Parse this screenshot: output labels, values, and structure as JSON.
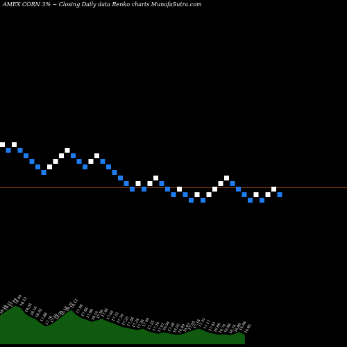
{
  "chart_data": {
    "type": "renko",
    "title": "AMEX CORN 3% ~ Closing Daily data Renko charts MunafaSutra.com",
    "reference_line": {
      "color": "#8b4513"
    },
    "colors": {
      "up": "#ffffff",
      "down": "#1e7bf0",
      "volume": "#0f5a0f"
    },
    "bricks": [
      {
        "dir": "up",
        "level": 0
      },
      {
        "dir": "down",
        "level": 1
      },
      {
        "dir": "up",
        "level": 0
      },
      {
        "dir": "down",
        "level": 1
      },
      {
        "dir": "down",
        "level": 2
      },
      {
        "dir": "down",
        "level": 3
      },
      {
        "dir": "down",
        "level": 4
      },
      {
        "dir": "down",
        "level": 5
      },
      {
        "dir": "up",
        "level": 4
      },
      {
        "dir": "up",
        "level": 3
      },
      {
        "dir": "up",
        "level": 2
      },
      {
        "dir": "up",
        "level": 1
      },
      {
        "dir": "down",
        "level": 2
      },
      {
        "dir": "down",
        "level": 3
      },
      {
        "dir": "down",
        "level": 4
      },
      {
        "dir": "up",
        "level": 3
      },
      {
        "dir": "up",
        "level": 2
      },
      {
        "dir": "down",
        "level": 3
      },
      {
        "dir": "down",
        "level": 4
      },
      {
        "dir": "down",
        "level": 5
      },
      {
        "dir": "down",
        "level": 6
      },
      {
        "dir": "down",
        "level": 7
      },
      {
        "dir": "down",
        "level": 8
      },
      {
        "dir": "up",
        "level": 7
      },
      {
        "dir": "down",
        "level": 8
      },
      {
        "dir": "up",
        "level": 7
      },
      {
        "dir": "up",
        "level": 6
      },
      {
        "dir": "down",
        "level": 7
      },
      {
        "dir": "down",
        "level": 8
      },
      {
        "dir": "down",
        "level": 9
      },
      {
        "dir": "up",
        "level": 8
      },
      {
        "dir": "down",
        "level": 9
      },
      {
        "dir": "down",
        "level": 10
      },
      {
        "dir": "up",
        "level": 9
      },
      {
        "dir": "down",
        "level": 10
      },
      {
        "dir": "up",
        "level": 9
      },
      {
        "dir": "up",
        "level": 8
      },
      {
        "dir": "up",
        "level": 7
      },
      {
        "dir": "up",
        "level": 6
      },
      {
        "dir": "down",
        "level": 7
      },
      {
        "dir": "down",
        "level": 8
      },
      {
        "dir": "down",
        "level": 9
      },
      {
        "dir": "down",
        "level": 10
      },
      {
        "dir": "up",
        "level": 9
      },
      {
        "dir": "down",
        "level": 10
      },
      {
        "dir": "up",
        "level": 9
      },
      {
        "dir": "up",
        "level": 8
      },
      {
        "dir": "down",
        "level": 9
      }
    ],
    "volume": [
      {
        "label": "18.24",
        "value": 0.55
      },
      {
        "label": "18.11",
        "value": 0.62
      },
      {
        "label": "17.94",
        "value": 0.68
      },
      {
        "label": "18.09",
        "value": 0.74
      },
      {
        "label": "18.22",
        "value": 0.7
      },
      {
        "label": "18.05",
        "value": 0.58
      },
      {
        "label": "18.16",
        "value": 0.52
      },
      {
        "label": "18.02",
        "value": 0.48
      },
      {
        "label": "17.88",
        "value": 0.4
      },
      {
        "label": "17.76",
        "value": 0.34
      },
      {
        "label": "17.90",
        "value": 0.38
      },
      {
        "label": "18.04",
        "value": 0.44
      },
      {
        "label": "18.18",
        "value": 0.52
      },
      {
        "label": "18.30",
        "value": 0.6
      },
      {
        "label": "18.12",
        "value": 0.66
      },
      {
        "label": "17.98",
        "value": 0.56
      },
      {
        "label": "17.84",
        "value": 0.5
      },
      {
        "label": "17.98",
        "value": 0.47
      },
      {
        "label": "18.10",
        "value": 0.43
      },
      {
        "label": "17.96",
        "value": 0.46
      },
      {
        "label": "17.81",
        "value": 0.49
      },
      {
        "label": "17.66",
        "value": 0.44
      },
      {
        "label": "17.52",
        "value": 0.41
      },
      {
        "label": "17.39",
        "value": 0.37
      },
      {
        "label": "17.25",
        "value": 0.33
      },
      {
        "label": "17.38",
        "value": 0.31
      },
      {
        "label": "17.24",
        "value": 0.29
      },
      {
        "label": "17.36",
        "value": 0.27
      },
      {
        "label": "17.49",
        "value": 0.3
      },
      {
        "label": "17.35",
        "value": 0.25
      },
      {
        "label": "17.20",
        "value": 0.22
      },
      {
        "label": "17.07",
        "value": 0.2
      },
      {
        "label": "16.94",
        "value": 0.23
      },
      {
        "label": "17.06",
        "value": 0.21
      },
      {
        "label": "16.92",
        "value": 0.19
      },
      {
        "label": "16.80",
        "value": 0.18
      },
      {
        "label": "16.93",
        "value": 0.2
      },
      {
        "label": "17.05",
        "value": 0.24
      },
      {
        "label": "17.18",
        "value": 0.27
      },
      {
        "label": "17.31",
        "value": 0.3
      },
      {
        "label": "17.17",
        "value": 0.26
      },
      {
        "label": "17.03",
        "value": 0.22
      },
      {
        "label": "16.89",
        "value": 0.2
      },
      {
        "label": "16.76",
        "value": 0.18
      },
      {
        "label": "16.88",
        "value": 0.19
      },
      {
        "label": "16.74",
        "value": 0.17
      },
      {
        "label": "16.86",
        "value": 0.2
      },
      {
        "label": "16.98",
        "value": 0.23
      },
      {
        "label": "16.85",
        "value": 0.18
      }
    ]
  }
}
